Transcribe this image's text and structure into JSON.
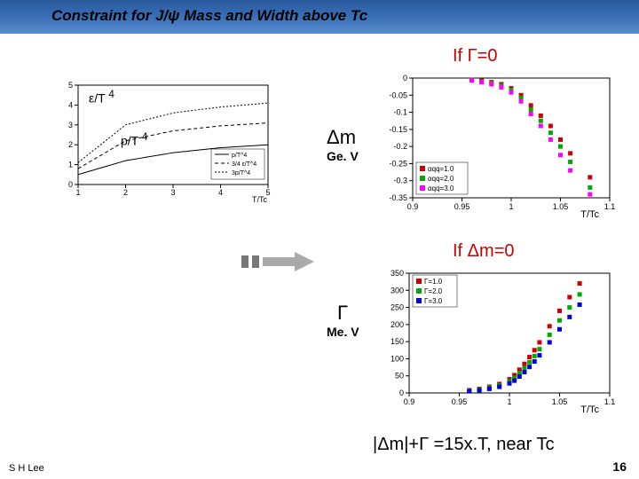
{
  "title": "Constraint for J/ψ Mass and Width above Tc",
  "cond_gamma0": "If Γ=0",
  "cond_dm0": "If Δm=0",
  "eq_bottom": "|Δm|+Γ =15x.T,  near Tc",
  "footer_left": "S H Lee",
  "page_num": "16",
  "eps_label": "ε/T",
  "eps_power": "4",
  "p_label": "p/T",
  "p_power": "4",
  "dm_label": "Δm",
  "dm_unit": "Ge. V",
  "gamma_label": "Γ",
  "gamma_unit": "Me. V",
  "chartA": {
    "xlim": [
      1,
      5
    ],
    "ylim": [
      0,
      5
    ],
    "xticks": [
      1,
      2,
      3,
      4,
      5
    ],
    "yticks": [
      0,
      1,
      2,
      3,
      4,
      5
    ],
    "xlabel": "T/Tc",
    "series": [
      {
        "dash": "none",
        "color": "#000",
        "y_at": [
          0.5,
          1.2,
          1.6,
          1.85,
          2.0
        ],
        "label": "p/T^4"
      },
      {
        "dash": "4,3",
        "color": "#000",
        "y_at": [
          0.8,
          2.2,
          2.7,
          2.95,
          3.1
        ],
        "label": "3/4 ε/T^4"
      },
      {
        "dash": "2,2",
        "color": "#000",
        "y_at": [
          1.1,
          3.0,
          3.6,
          3.9,
          4.1
        ],
        "label": "3p/T^4"
      }
    ]
  },
  "chartB": {
    "xlim": [
      0.9,
      1.1
    ],
    "ylim": [
      -0.35,
      0.0
    ],
    "xticks": [
      0.9,
      0.95,
      1.0,
      1.05,
      1.1
    ],
    "yticks": [
      0,
      -0.05,
      -0.1,
      -0.15,
      -0.2,
      -0.25,
      -0.3,
      -0.35
    ],
    "xlabel": "T/Tc",
    "legend": [
      "αqq=1.0",
      "αqq=2.0",
      "αqq=3.0"
    ],
    "legend_colors": [
      "#cc0000",
      "#00aa00",
      "#ff00ff"
    ],
    "points": {
      "x": [
        0.96,
        0.97,
        0.98,
        0.99,
        1.0,
        1.01,
        1.02,
        1.03,
        1.04,
        1.05,
        1.06,
        1.08
      ],
      "red": [
        -0.005,
        -0.008,
        -0.012,
        -0.018,
        -0.03,
        -0.05,
        -0.08,
        -0.11,
        -0.14,
        -0.18,
        -0.22,
        -0.29
      ],
      "green": [
        -0.006,
        -0.01,
        -0.015,
        -0.022,
        -0.035,
        -0.058,
        -0.092,
        -0.125,
        -0.16,
        -0.2,
        -0.245,
        -0.32
      ],
      "pink": [
        -0.007,
        -0.012,
        -0.018,
        -0.027,
        -0.042,
        -0.068,
        -0.105,
        -0.14,
        -0.18,
        -0.225,
        -0.27,
        -0.34
      ]
    }
  },
  "chartC": {
    "xlim": [
      0.9,
      1.1
    ],
    "ylim": [
      0,
      350
    ],
    "xticks": [
      0.9,
      0.95,
      1.0,
      1.05,
      1.1
    ],
    "yticks": [
      0,
      50,
      100,
      150,
      200,
      250,
      300,
      350
    ],
    "xlabel": "T/Tc",
    "legend": [
      "Γ=1.0",
      "Γ=2.0",
      "Γ=3.0"
    ],
    "legend_colors": [
      "#cc0000",
      "#00aa00",
      "#0000dd"
    ],
    "points": {
      "x": [
        0.96,
        0.97,
        0.98,
        0.99,
        1.0,
        1.005,
        1.01,
        1.015,
        1.02,
        1.025,
        1.03,
        1.04,
        1.05,
        1.06,
        1.07
      ],
      "red": [
        8,
        12,
        18,
        26,
        40,
        52,
        68,
        85,
        105,
        125,
        148,
        195,
        240,
        280,
        320
      ],
      "green": [
        6,
        10,
        15,
        22,
        34,
        44,
        58,
        73,
        90,
        108,
        128,
        170,
        212,
        250,
        288
      ],
      "blue": [
        5,
        8,
        12,
        18,
        28,
        36,
        48,
        61,
        76,
        92,
        110,
        148,
        186,
        222,
        258
      ]
    }
  },
  "colors": {
    "axis": "#000000",
    "grid": "#cccccc",
    "red": "#cc0000",
    "green": "#00aa00",
    "pink": "#ff00ff",
    "blue": "#0000dd"
  }
}
